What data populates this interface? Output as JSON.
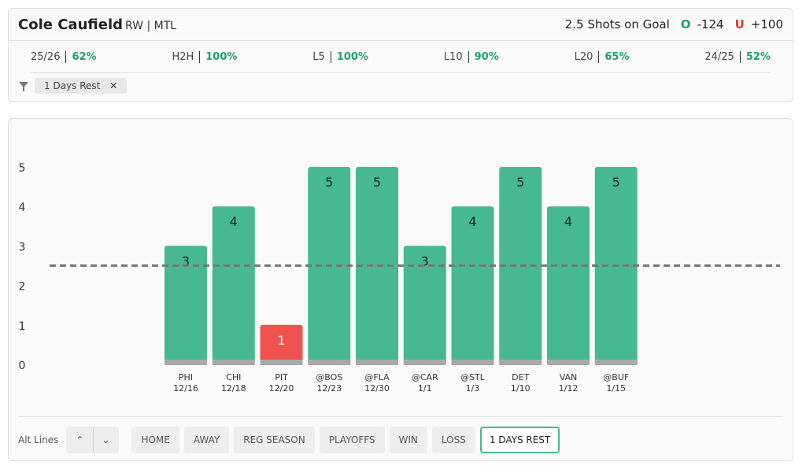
{
  "header": {
    "player": "Cole Caufield",
    "position_team": "RW | MTL",
    "line": 2.5,
    "prop": "Shots on Goal",
    "over_label": "O",
    "over_odds": "-124",
    "under_label": "U",
    "under_odds": "+100"
  },
  "stats": [
    {
      "label": "25/26",
      "value": "62%"
    },
    {
      "label": "H2H",
      "value": "100%"
    },
    {
      "label": "L5",
      "value": "100%"
    },
    {
      "label": "L10",
      "value": "90%"
    },
    {
      "label": "L20",
      "value": "65%"
    },
    {
      "label": "24/25",
      "value": "52%"
    }
  ],
  "filter_chip": "1 Days Rest",
  "chart_data": {
    "type": "bar",
    "categories": [
      "PHI",
      "CHI",
      "PIT",
      "@BOS",
      "@FLA",
      "@CAR",
      "@STL",
      "DET",
      "VAN",
      "@BUF"
    ],
    "dates": [
      "12/16",
      "12/18",
      "12/20",
      "12/23",
      "12/30",
      "1/1",
      "1/3",
      "1/10",
      "1/12",
      "1/15"
    ],
    "values": [
      3,
      4,
      1,
      5,
      5,
      3,
      4,
      5,
      4,
      5
    ],
    "over_color": "#46b993",
    "under_color": "#ef5350",
    "ylim": [
      0,
      5
    ],
    "yticks": [
      0,
      1,
      2,
      3,
      4,
      5
    ]
  },
  "controls": {
    "alt_lines": "Alt Lines",
    "filters": [
      "HOME",
      "AWAY",
      "REG SEASON",
      "PLAYOFFS",
      "WIN",
      "LOSS",
      "1 DAYS REST"
    ],
    "active": 6
  }
}
